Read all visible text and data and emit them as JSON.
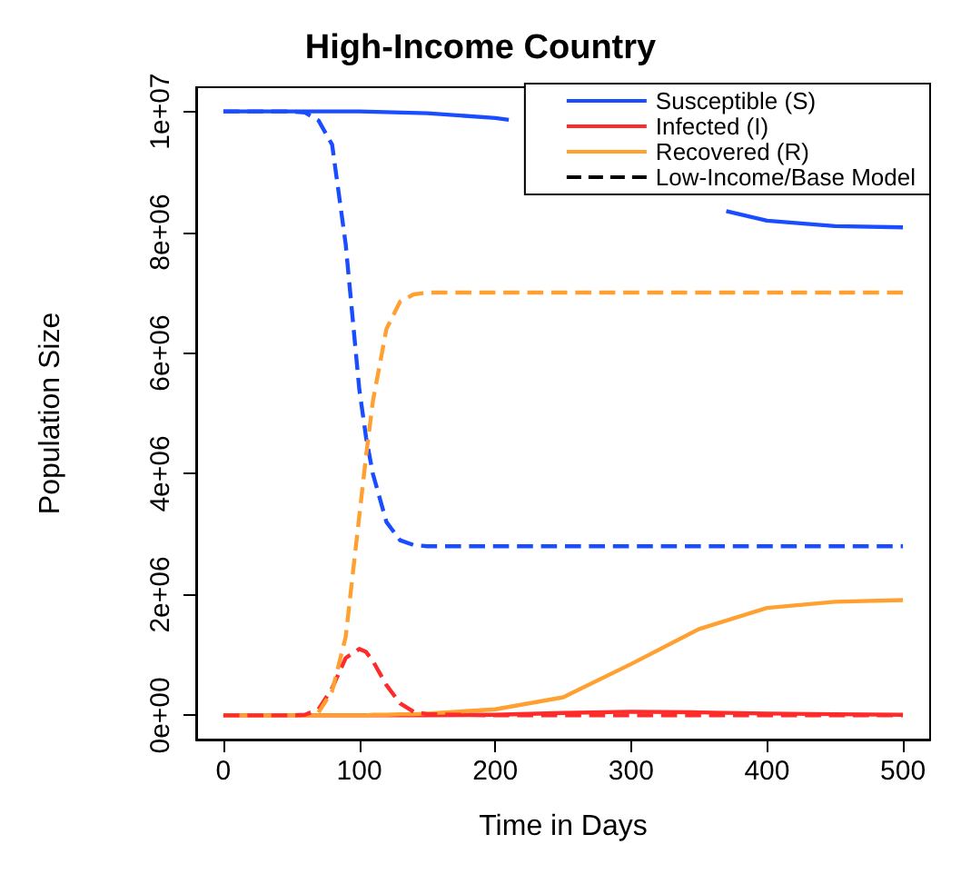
{
  "chart_data": {
    "type": "line",
    "title": "High-Income Country",
    "xlabel": "Time in Days",
    "ylabel": "Population Size",
    "x": [
      0,
      50,
      60,
      70,
      80,
      90,
      100,
      105,
      110,
      120,
      130,
      140,
      150,
      200,
      250,
      300,
      350,
      400,
      450,
      500
    ],
    "series": [
      {
        "name": "Susceptible (S)",
        "color": "#1a4dff",
        "line_style": "solid",
        "x": [
          0,
          50,
          100,
          150,
          200,
          210,
          250,
          300,
          350,
          370,
          400,
          450,
          500
        ],
        "values": [
          10000000,
          10000000,
          10000000,
          9970000,
          9890000,
          9860000,
          null,
          null,
          null,
          8350000,
          8190000,
          8100000,
          8080000
        ]
      },
      {
        "name": "Infected (I)",
        "color": "#ff2a2a",
        "line_style": "solid",
        "values": [
          0,
          0,
          0,
          0,
          0,
          0,
          0,
          0,
          0,
          0,
          0,
          0,
          0,
          10000,
          40000,
          60000,
          50000,
          30000,
          20000,
          10000
        ]
      },
      {
        "name": "Recovered (R)",
        "color": "#ffa030",
        "line_style": "solid",
        "values": [
          0,
          0,
          0,
          0,
          0,
          0,
          0,
          0,
          10000,
          10000,
          20000,
          20000,
          30000,
          100000,
          300000,
          850000,
          1430000,
          1780000,
          1880000,
          1910000
        ]
      },
      {
        "name": "Low-Income/Base Model",
        "color": "#000000",
        "line_style": "dashed",
        "values": [
          null,
          null,
          null,
          null,
          null,
          null,
          null,
          null,
          null,
          null,
          null,
          null,
          null,
          null,
          null,
          null,
          null,
          null,
          null,
          null
        ]
      },
      {
        "color": "#1a4dff",
        "line_style": "dashed",
        "values": [
          10000000,
          10000000,
          9980000,
          9850000,
          9450000,
          7800000,
          5400000,
          4600000,
          4000000,
          3200000,
          2900000,
          2820000,
          2800000,
          2800000,
          2800000,
          2800000,
          2800000,
          2800000,
          2800000,
          2800000
        ]
      },
      {
        "color": "#ff2a2a",
        "line_style": "dashed",
        "values": [
          0,
          0,
          10000,
          100000,
          450000,
          950000,
          1100000,
          1050000,
          900000,
          500000,
          200000,
          60000,
          20000,
          0,
          0,
          0,
          0,
          0,
          0,
          0
        ]
      },
      {
        "color": "#ffa030",
        "line_style": "dashed",
        "values": [
          null,
          null,
          null,
          50000,
          400000,
          1300000,
          3300000,
          4300000,
          5200000,
          6400000,
          6850000,
          6970000,
          7000000,
          7000000,
          7000000,
          7000000,
          7000000,
          7000000,
          7000000,
          7000000
        ]
      }
    ],
    "xlim": [
      -20,
      520
    ],
    "xticks": [
      0,
      100,
      200,
      300,
      400,
      500
    ],
    "ylim": [
      -400000,
      10400000
    ],
    "yticks": [
      {
        "value": 0,
        "label": "0e+00"
      },
      {
        "value": 2000000,
        "label": "2e+06"
      },
      {
        "value": 4000000,
        "label": "4e+06"
      },
      {
        "value": 6000000,
        "label": "6e+06"
      },
      {
        "value": 8000000,
        "label": "8e+06"
      },
      {
        "value": 10000000,
        "label": "1e+07"
      }
    ],
    "legend": "top right",
    "grid": false,
    "marker": "none"
  }
}
